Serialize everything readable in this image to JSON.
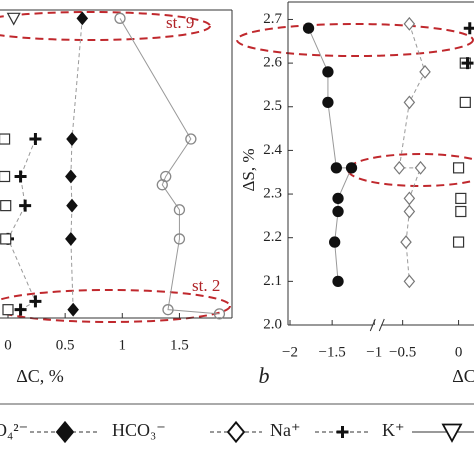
{
  "chart_data": [
    {
      "type": "scatter",
      "xlabel": "ΔC, %",
      "xlim": [
        -0.07,
        1.96
      ],
      "ylim": [
        2.0,
        2.74
      ],
      "xticks": [
        {
          "value": 0,
          "label": "0"
        },
        {
          "value": 0.5,
          "label": "0.5"
        },
        {
          "value": 1,
          "label": "1"
        },
        {
          "value": 1.5,
          "label": "1.5"
        }
      ],
      "annotations": [
        "st. 9",
        "st. 2"
      ],
      "series": [
        {
          "marker": "circle",
          "fill": "none",
          "color": "#888888",
          "line": "solid",
          "x": [
            0.98,
            1.6,
            1.38,
            1.35,
            1.5,
            1.5,
            1.4,
            1.85
          ],
          "y": [
            2.72,
            2.43,
            2.34,
            2.32,
            2.26,
            2.19,
            2.02,
            2.01
          ]
        },
        {
          "marker": "diamond",
          "fill": "#111111",
          "color": "#111111",
          "line": "dashed",
          "x": [
            0.65,
            0.56,
            0.55,
            0.56,
            0.55,
            0.57
          ],
          "y": [
            2.72,
            2.43,
            2.34,
            2.27,
            2.19,
            2.02
          ]
        },
        {
          "marker": "plus",
          "fill": "none",
          "color": "#111111",
          "line": "dashed",
          "x": [
            0.24,
            0.11,
            0.15,
            0.0,
            0.24,
            0.11
          ],
          "y": [
            2.43,
            2.34,
            2.27,
            2.19,
            2.04,
            2.02
          ]
        },
        {
          "marker": "square",
          "fill": "none",
          "color": "#333333",
          "line": "none",
          "x": [
            -0.03,
            -0.03,
            -0.02,
            -0.02,
            0.0
          ],
          "y": [
            2.43,
            2.34,
            2.27,
            2.19,
            2.02
          ]
        },
        {
          "marker": "triangle",
          "fill": "none",
          "color": "#333333",
          "line": "none",
          "x": [
            0.05
          ],
          "y": [
            2.72
          ]
        }
      ]
    },
    {
      "type": "scatter",
      "xlabel": "ΔC",
      "ylabel": "ΔS, %",
      "panel": "b",
      "xlim": [
        -2,
        0.12
      ],
      "xbreak": [
        -1.0,
        -0.7
      ],
      "ylim": [
        2.0,
        2.74
      ],
      "xticks": [
        {
          "value": -2,
          "label": "−2"
        },
        {
          "value": -1.5,
          "label": "−1.5"
        },
        {
          "value": -1,
          "label": "−1"
        },
        {
          "value": -0.5,
          "label": "−0.5"
        },
        {
          "value": 0,
          "label": "0"
        }
      ],
      "yticks": [
        {
          "value": 2.0,
          "label": "2.0"
        },
        2.1,
        2.2,
        2.3,
        2.4,
        2.5,
        2.6,
        2.7
      ],
      "series": [
        {
          "marker": "circle",
          "fill": "#111111",
          "color": "#111111",
          "line": "solid",
          "x": [
            -1.78,
            -1.55,
            -1.55,
            -1.45,
            -1.27,
            -1.43,
            -1.43,
            -1.47,
            -1.43
          ],
          "y": [
            2.68,
            2.58,
            2.51,
            2.36,
            2.36,
            2.29,
            2.26,
            2.19,
            2.1
          ]
        },
        {
          "marker": "diamond",
          "fill": "none",
          "color": "#777777",
          "line": "dashed",
          "x": [
            -0.44,
            -0.3,
            -0.44,
            -0.53,
            -0.34,
            -0.44,
            -0.44,
            -0.47,
            -0.44
          ],
          "y": [
            2.69,
            2.58,
            2.51,
            2.36,
            2.36,
            2.29,
            2.26,
            2.19,
            2.1
          ]
        },
        {
          "marker": "square",
          "fill": "none",
          "color": "#333333",
          "line": "none",
          "x": [
            0.06,
            0.06,
            0.0,
            0.02,
            0.02,
            0.0
          ],
          "y": [
            2.6,
            2.51,
            2.36,
            2.29,
            2.26,
            2.19
          ]
        },
        {
          "marker": "plus",
          "fill": "none",
          "color": "#111111",
          "line": "none",
          "x": [
            0.1,
            0.08
          ],
          "y": [
            2.68,
            2.6
          ]
        }
      ]
    }
  ],
  "legend": [
    {
      "label": "O₄²⁻",
      "marker": "square",
      "fill": "none",
      "line": "dashed"
    },
    {
      "label": "HCO₃⁻",
      "marker": "diamond",
      "fill": "#111111",
      "line": "dashed"
    },
    {
      "label": "Na⁺",
      "marker": "diamond",
      "fill": "none",
      "line": "dashed"
    },
    {
      "label": "K⁺",
      "marker": "plus",
      "fill": "none",
      "line": "dashed"
    },
    {
      "marker": "triangle",
      "fill": "none",
      "line": "solid"
    }
  ]
}
